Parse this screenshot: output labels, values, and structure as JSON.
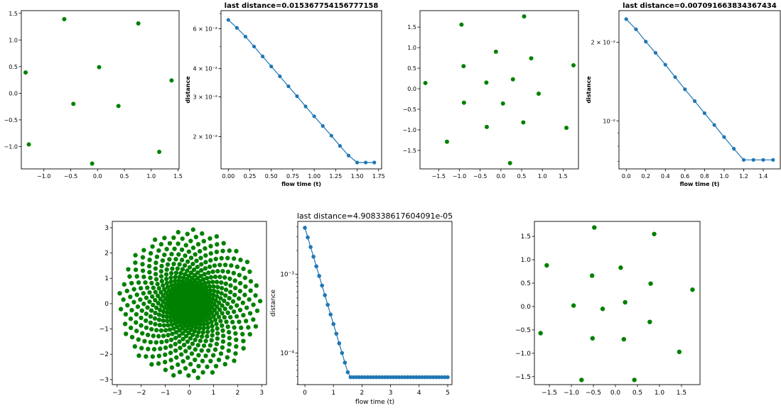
{
  "chart_data": [
    {
      "id": "p1",
      "type": "scatter",
      "title": "",
      "xlabel": "",
      "ylabel": "",
      "xlim": [
        -1.42,
        1.52
      ],
      "ylim": [
        -1.42,
        1.55
      ],
      "xticks": [
        -1.0,
        -0.5,
        0.0,
        0.5,
        1.0,
        1.5
      ],
      "xtick_labels": [
        "−1.0",
        "−0.5",
        "0.0",
        "0.5",
        "1.0",
        "1.5"
      ],
      "yticks": [
        -1.0,
        -0.5,
        0.0,
        0.5,
        1.0,
        1.5
      ],
      "ytick_labels": [
        "−1.0",
        "−0.5",
        "0.0",
        "0.5",
        "1.0",
        "1.5"
      ],
      "color": "#008000",
      "points": [
        [
          -0.62,
          1.39
        ],
        [
          0.76,
          1.31
        ],
        [
          -1.34,
          0.39
        ],
        [
          0.03,
          0.49
        ],
        [
          1.38,
          0.24
        ],
        [
          -0.45,
          -0.2
        ],
        [
          0.39,
          -0.24
        ],
        [
          -1.28,
          -0.96
        ],
        [
          -0.1,
          -1.32
        ],
        [
          1.15,
          -1.1
        ]
      ]
    },
    {
      "id": "p2",
      "type": "line",
      "title": "last distance=0.015367754156777158",
      "xlabel": "flow time (t)",
      "ylabel": "distance",
      "yscale": "log",
      "xlim": [
        -0.085,
        1.785
      ],
      "ylim": [
        0.0144,
        0.0722
      ],
      "xticks": [
        0.0,
        0.25,
        0.5,
        0.75,
        1.0,
        1.25,
        1.5,
        1.75
      ],
      "xtick_labels": [
        "0.00",
        "0.25",
        "0.50",
        "0.75",
        "1.00",
        "1.25",
        "1.50",
        "1.75"
      ],
      "yticks": [
        0.02,
        0.03,
        0.04,
        0.06
      ],
      "ytick_labels": [
        "2 × 10⁻²",
        "3 × 10⁻²",
        "4 × 10⁻²",
        "6 × 10⁻²"
      ],
      "color": "#1f77b4",
      "marker": "circle",
      "x_start": 0.0,
      "x_step": 0.1,
      "y": [
        0.0657,
        0.0606,
        0.0554,
        0.0501,
        0.0453,
        0.0409,
        0.037,
        0.0334,
        0.0302,
        0.0272,
        0.0246,
        0.0223,
        0.0202,
        0.0182,
        0.0165,
        0.01537,
        0.01537,
        0.01537
      ]
    },
    {
      "id": "p3",
      "type": "scatter",
      "title": "",
      "xlabel": "",
      "ylabel": "",
      "xlim": [
        -1.95,
        1.87
      ],
      "ylim": [
        -1.95,
        1.9
      ],
      "xticks": [
        -1.5,
        -1.0,
        -0.5,
        0.0,
        0.5,
        1.0,
        1.5
      ],
      "xtick_labels": [
        "−1.5",
        "−1.0",
        "−0.5",
        "0.0",
        "0.5",
        "1.0",
        "1.5"
      ],
      "yticks": [
        -1.5,
        -1.0,
        -0.5,
        0.0,
        0.5,
        1.0,
        1.5
      ],
      "ytick_labels": [
        "−1.5",
        "−1.0",
        "−0.5",
        "0.0",
        "0.5",
        "1.0",
        "1.5"
      ],
      "color": "#008000",
      "points": [
        [
          0.56,
          1.76
        ],
        [
          -0.95,
          1.56
        ],
        [
          -0.12,
          0.9
        ],
        [
          0.73,
          0.74
        ],
        [
          1.75,
          0.57
        ],
        [
          -0.9,
          0.55
        ],
        [
          0.29,
          0.23
        ],
        [
          -1.82,
          0.14
        ],
        [
          -0.35,
          0.15
        ],
        [
          0.91,
          -0.12
        ],
        [
          -0.89,
          -0.34
        ],
        [
          0.05,
          -0.36
        ],
        [
          0.54,
          -0.82
        ],
        [
          -0.34,
          -0.93
        ],
        [
          1.58,
          -0.95
        ],
        [
          -1.3,
          -1.29
        ],
        [
          0.22,
          -1.81
        ]
      ]
    },
    {
      "id": "p4",
      "type": "line",
      "title": "last distance=0.007091663834367434",
      "xlabel": "flow time (t)",
      "ylabel": "distance",
      "yscale": "log",
      "xlim": [
        -0.074,
        1.574
      ],
      "ylim": [
        0.00655,
        0.0264
      ],
      "xticks": [
        0.0,
        0.2,
        0.4,
        0.6,
        0.8,
        1.0,
        1.2,
        1.4
      ],
      "xtick_labels": [
        "0.0",
        "0.2",
        "0.4",
        "0.6",
        "0.8",
        "1.0",
        "1.2",
        "1.4"
      ],
      "yticks": [
        0.01,
        0.02
      ],
      "ytick_labels": [
        "10⁻²",
        "2 × 10⁻²"
      ],
      "color": "#1f77b4",
      "marker": "circle",
      "x_start": 0.0,
      "x_step": 0.1,
      "y": [
        0.0245,
        0.0224,
        0.0201,
        0.0182,
        0.0164,
        0.0147,
        0.0132,
        0.0119,
        0.0107,
        0.00964,
        0.00867,
        0.00782,
        0.00709,
        0.00709,
        0.00709,
        0.00709
      ]
    },
    {
      "id": "p5",
      "type": "scatter",
      "title": "",
      "xlabel": "",
      "ylabel": "",
      "xlim": [
        -3.2,
        3.2
      ],
      "ylim": [
        -3.2,
        3.25
      ],
      "xticks": [
        -3,
        -2,
        -1,
        0,
        1,
        2,
        3
      ],
      "xtick_labels": [
        "−3",
        "−2",
        "−1",
        "0",
        "1",
        "2",
        "3"
      ],
      "yticks": [
        -3,
        -2,
        -1,
        0,
        1,
        2,
        3
      ],
      "ytick_labels": [
        "−3",
        "−2",
        "−1",
        "0",
        "1",
        "2",
        "3"
      ],
      "color": "#008000",
      "distribution": {
        "n": 900,
        "max_radius": 2.95,
        "pattern": "golden-angle spiral, dense centre"
      }
    },
    {
      "id": "p6",
      "type": "line",
      "title": "last distance=4.908338617604091e-05",
      "xlabel": "flow time (t)",
      "ylabel": "distance",
      "yscale": "log",
      "xlim": [
        -0.25,
        5.15
      ],
      "ylim": [
        3.95e-05,
        0.0047
      ],
      "xticks": [
        0,
        1,
        2,
        3,
        4,
        5
      ],
      "xtick_labels": [
        "0",
        "1",
        "2",
        "3",
        "4",
        "5"
      ],
      "yticks": [
        0.0001,
        0.001
      ],
      "ytick_labels": [
        "10⁻⁴",
        "10⁻³"
      ],
      "color": "#1f77b4",
      "marker": "circle",
      "x_start": 0.0,
      "x_step": 0.1,
      "y_model": {
        "y0": 0.0039,
        "decay_per_unit": 2.82,
        "floor": 4.908e-05,
        "count": 51
      }
    },
    {
      "id": "p7",
      "type": "scatter",
      "title": "",
      "xlabel": "",
      "ylabel": "",
      "xlim": [
        -1.84,
        1.92
      ],
      "ylim": [
        -1.67,
        1.82
      ],
      "xticks": [
        -1.5,
        -1.0,
        -0.5,
        0.0,
        0.5,
        1.0,
        1.5
      ],
      "xtick_labels": [
        "−1.5",
        "−1.0",
        "−0.5",
        "0.0",
        "0.5",
        "1.0",
        "1.5"
      ],
      "yticks": [
        -1.5,
        -1.0,
        -0.5,
        0.0,
        0.5,
        1.0,
        1.5
      ],
      "ytick_labels": [
        "−1.5",
        "−1.0",
        "−0.5",
        "0.0",
        "0.5",
        "1.0",
        "1.5"
      ],
      "color": "#008000",
      "points": [
        [
          -0.48,
          1.69
        ],
        [
          0.88,
          1.55
        ],
        [
          -1.56,
          0.88
        ],
        [
          -0.53,
          0.66
        ],
        [
          0.12,
          0.83
        ],
        [
          0.8,
          0.49
        ],
        [
          1.75,
          0.36
        ],
        [
          -0.95,
          0.02
        ],
        [
          -0.29,
          -0.05
        ],
        [
          0.22,
          0.09
        ],
        [
          -1.7,
          -0.57
        ],
        [
          0.78,
          -0.33
        ],
        [
          -0.52,
          -0.68
        ],
        [
          0.19,
          -0.7
        ],
        [
          1.45,
          -0.97
        ],
        [
          -0.77,
          -1.57
        ],
        [
          0.43,
          -1.57
        ]
      ]
    }
  ]
}
